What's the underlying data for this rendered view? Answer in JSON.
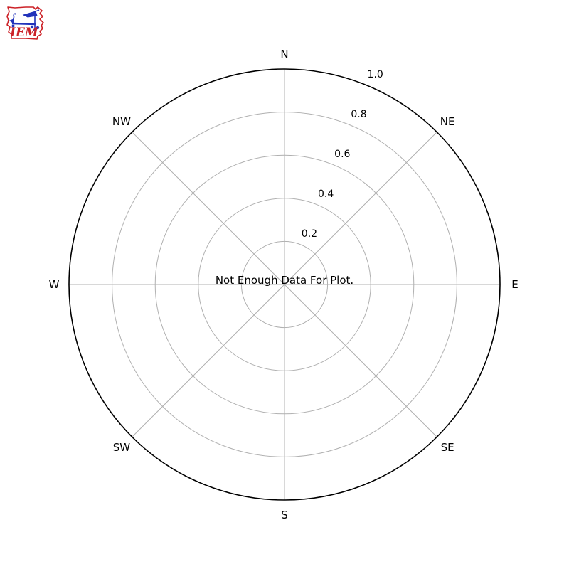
{
  "logo": {
    "text": "IEM",
    "outline_color": "#cc2127",
    "text_color": "#cc2127",
    "instrument_color": "#2233bb"
  },
  "message": "Not Enough Data For Plot.",
  "chart_data": {
    "type": "windrose-polar",
    "title": "",
    "directions": [
      "N",
      "NE",
      "E",
      "SE",
      "S",
      "SW",
      "W",
      "NW"
    ],
    "radial_ticks": [
      0.2,
      0.4,
      0.6,
      0.8
    ],
    "radial_tick_labels": [
      "0.2",
      "0.4",
      "0.6",
      "0.8",
      "1.0"
    ],
    "radial_tick_values": [
      0.2,
      0.4,
      0.6,
      0.8,
      1.0
    ],
    "rlim": [
      0,
      1.0
    ],
    "rlabel_angle_deg": 22.5,
    "series": [],
    "annotation": "Not Enough Data For Plot.",
    "grid": true,
    "grid_color": "#b0b0b0",
    "outline_color": "#000000",
    "background_color": "#ffffff"
  }
}
